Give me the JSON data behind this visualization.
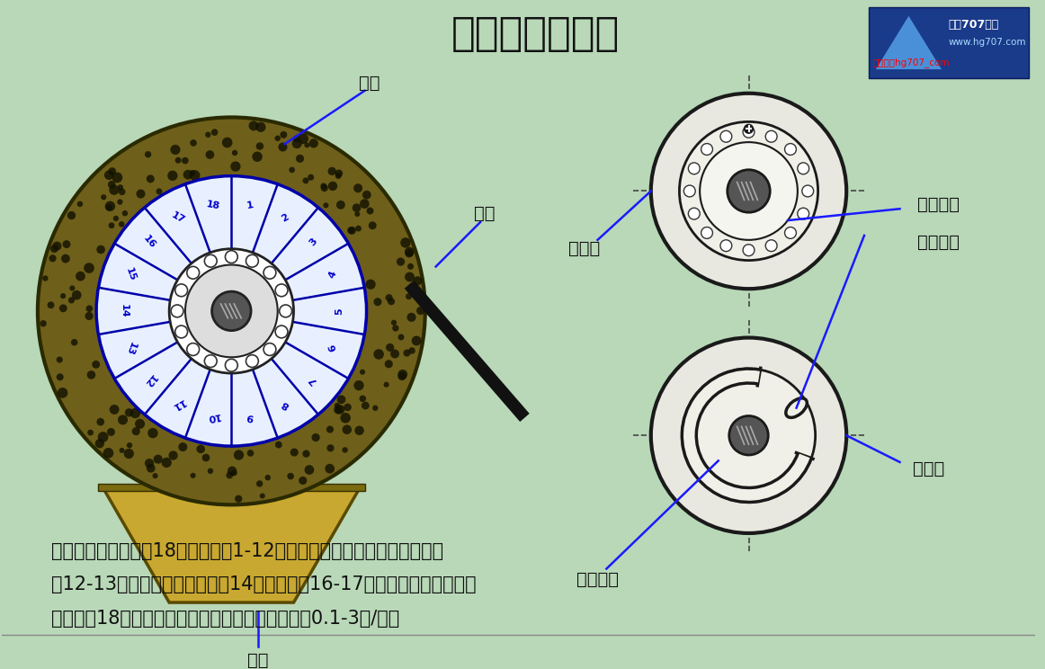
{
  "bg_color": "#b8d8b8",
  "title": "转筒真空过滤机",
  "title_fontsize": 30,
  "n_sectors": 18,
  "sector_labels": [
    "1",
    "2",
    "3",
    "4",
    "5",
    "6",
    "7",
    "8",
    "9",
    "10",
    "11",
    "12",
    "13",
    "14",
    "15",
    "16",
    "17",
    "18"
  ],
  "sector_label_color": "#0000cc",
  "sector_line_color": "#0000aa",
  "annotation_color": "#1a1aff",
  "body_text_line1": "将两同心圆转筒分成18个扇形区，1-12区内接真空管，为过滤区和吸干区",
  "body_text_line2": "。12-13区接通洗水为洗涤区，14为吸干区，16-17区与压缩通气相连，为",
  "body_text_line3": "卸料区，18区外侧之刮刀将滤饼刮下。转筒转速为0.1-3转/分。",
  "label_zhuantong": "转筒",
  "label_gedao": "割刀",
  "label_jiangliao": "浆料",
  "label_zhuandongpan": "转动盘",
  "label_xishuicaocao": "吸水凹槽",
  "label_tongqicaocao": "通气凹槽",
  "label_xiyecaocao": "吸液凹槽",
  "label_gudingpan": "固定盘"
}
